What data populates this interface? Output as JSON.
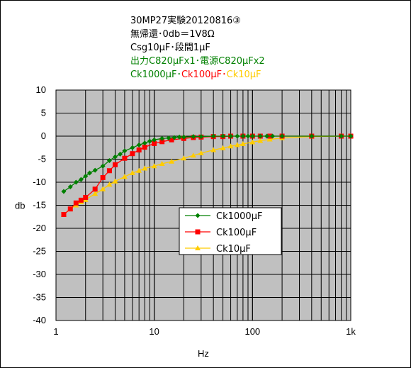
{
  "chart_data": {
    "type": "line",
    "title_lines": [
      {
        "segments": [
          {
            "text": "30MP27実験20120816③",
            "color": "#000000"
          }
        ]
      },
      {
        "segments": [
          {
            "text": "無帰還･0db＝1V8Ω",
            "color": "#000000"
          }
        ]
      },
      {
        "segments": [
          {
            "text": "Csg10μF･段間1μF",
            "color": "#000000"
          }
        ]
      },
      {
        "segments": [
          {
            "text": "出力C820μFx1･電源C820μFx2",
            "color": "#008000"
          }
        ]
      },
      {
        "segments": [
          {
            "text": "Ck1000μF･",
            "color": "#008000"
          },
          {
            "text": "Ck100μF･",
            "color": "#ff0000"
          },
          {
            "text": "Ck10μF",
            "color": "#ffcc00"
          }
        ]
      }
    ],
    "xlabel": "Hz",
    "ylabel": "db",
    "xscale": "log",
    "xlim": [
      1,
      1000
    ],
    "ylim": [
      -40,
      10
    ],
    "ystep": 5,
    "x_tick_labels": [
      {
        "value": 1,
        "label": "1"
      },
      {
        "value": 10,
        "label": "10"
      },
      {
        "value": 100,
        "label": "100"
      },
      {
        "value": 1000,
        "label": "1k"
      }
    ],
    "y_tick_labels": [
      "10",
      "5",
      "0",
      "-5",
      "-10",
      "-15",
      "-20",
      "-25",
      "-30",
      "-35",
      "-40"
    ],
    "grid": true,
    "legend_position": "center-right",
    "series": [
      {
        "name": "Ck1000μF",
        "color": "#008000",
        "marker": "diamond",
        "x": [
          1.2,
          1.4,
          1.6,
          1.8,
          2.0,
          2.2,
          2.5,
          3.0,
          3.5,
          4.0,
          4.5,
          5.0,
          6.0,
          7.0,
          8.0,
          9.0,
          10,
          12,
          14,
          16,
          18,
          20,
          25,
          30,
          40,
          50,
          60,
          70,
          80,
          90,
          100,
          120,
          140,
          160,
          200,
          400,
          800,
          1000
        ],
        "y": [
          -12.0,
          -11.0,
          -10.0,
          -9.4,
          -8.7,
          -8.0,
          -7.4,
          -6.5,
          -5.3,
          -4.5,
          -3.9,
          -3.2,
          -2.5,
          -1.9,
          -1.5,
          -1.1,
          -0.8,
          -0.5,
          -0.4,
          -0.3,
          -0.2,
          -0.2,
          -0.1,
          -0.1,
          0,
          0,
          0,
          0,
          0,
          0,
          0,
          0,
          0,
          0,
          0,
          0,
          0,
          0
        ]
      },
      {
        "name": "Ck100μF",
        "color": "#ff0000",
        "marker": "square",
        "x": [
          1.2,
          1.4,
          1.6,
          1.8,
          2.0,
          2.5,
          3.0,
          3.5,
          4.0,
          5.0,
          6.0,
          7.0,
          8.0,
          10,
          12,
          15,
          20,
          25,
          30,
          40,
          50,
          60,
          80,
          100,
          120,
          150,
          200,
          400,
          800,
          1000
        ],
        "y": [
          -17.0,
          -15.8,
          -14.5,
          -13.9,
          -13.3,
          -11.5,
          -9.0,
          -7.5,
          -6.2,
          -4.8,
          -3.8,
          -3.0,
          -2.4,
          -1.6,
          -1.2,
          -0.8,
          -0.5,
          -0.3,
          -0.2,
          -0.1,
          -0.1,
          0,
          0,
          0,
          0,
          0,
          0,
          0,
          0,
          0
        ]
      },
      {
        "name": "Ck10μF",
        "color": "#ffcc00",
        "marker": "triangle",
        "x": [
          1.2,
          1.4,
          1.6,
          1.8,
          2.0,
          2.5,
          3.0,
          3.5,
          4.0,
          5.0,
          6.0,
          7.0,
          8.0,
          10,
          12,
          15,
          20,
          25,
          30,
          40,
          50,
          60,
          70,
          80,
          100,
          120,
          150,
          200,
          400,
          800,
          1000
        ],
        "y": [
          -17.0,
          -15.8,
          -15.0,
          -14.3,
          -13.8,
          -12.5,
          -11.5,
          -10.5,
          -9.8,
          -8.8,
          -8.0,
          -7.5,
          -7.0,
          -6.5,
          -6.0,
          -5.5,
          -4.8,
          -4.2,
          -3.7,
          -3.0,
          -2.6,
          -2.2,
          -1.9,
          -1.7,
          -1.3,
          -1.0,
          -0.7,
          -0.4,
          -0.1,
          0,
          0
        ]
      }
    ]
  },
  "colors": {
    "plot_background": "#c0c0c0",
    "grid": "#000000"
  }
}
